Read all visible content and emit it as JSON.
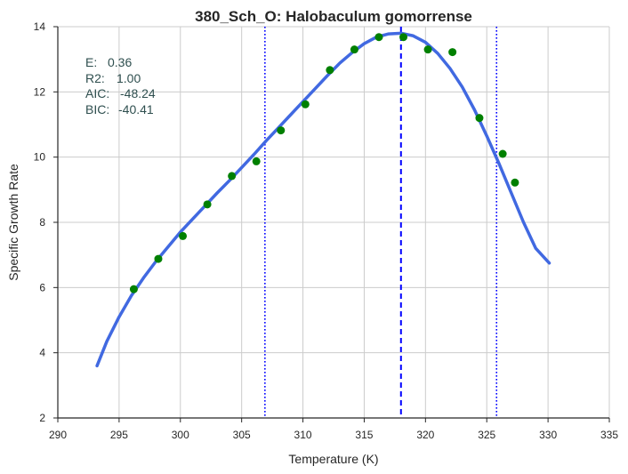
{
  "chart_data": {
    "type": "scatter",
    "title": "380_Sch_O: Halobaculum gomorrense",
    "xlabel": "Temperature (K)",
    "ylabel": "Specific Growth Rate",
    "xlim": [
      290,
      335
    ],
    "ylim": [
      2,
      14
    ],
    "xticks": [
      290,
      295,
      300,
      305,
      310,
      315,
      320,
      325,
      330,
      335
    ],
    "yticks": [
      2,
      4,
      6,
      8,
      10,
      12,
      14
    ],
    "grid": true,
    "points": {
      "color": "#008000",
      "x": [
        296.2,
        298.2,
        300.2,
        302.2,
        304.2,
        306.2,
        308.2,
        310.2,
        312.2,
        314.2,
        316.2,
        318.2,
        320.2,
        322.2,
        324.4,
        326.3,
        327.3
      ],
      "y": [
        5.95,
        6.88,
        7.58,
        8.55,
        9.42,
        9.87,
        10.82,
        11.62,
        12.67,
        13.3,
        13.68,
        13.68,
        13.3,
        13.22,
        11.2,
        10.1,
        9.22
      ]
    },
    "fit_curve": {
      "color": "#4169e1",
      "x": [
        293.2,
        294,
        295,
        296,
        297,
        298,
        299,
        300,
        301,
        302,
        303,
        304,
        305,
        306,
        307,
        308,
        309,
        310,
        311,
        312,
        313,
        314,
        315,
        316,
        317,
        318,
        319,
        320,
        321,
        322,
        323,
        324,
        325,
        326,
        327,
        328,
        329,
        330.1
      ],
      "y": [
        3.6,
        4.35,
        5.1,
        5.75,
        6.3,
        6.8,
        7.25,
        7.7,
        8.1,
        8.5,
        8.9,
        9.28,
        9.68,
        10.08,
        10.5,
        10.9,
        11.3,
        11.7,
        12.1,
        12.5,
        12.88,
        13.2,
        13.48,
        13.68,
        13.78,
        13.8,
        13.72,
        13.52,
        13.18,
        12.72,
        12.15,
        11.45,
        10.65,
        9.8,
        8.9,
        8.0,
        7.2,
        6.75
      ]
    },
    "vlines": [
      {
        "x": 318.0,
        "style": "dashed",
        "color": "#0000ff"
      },
      {
        "x": 306.9,
        "style": "dotted",
        "color": "#0000ff"
      },
      {
        "x": 325.8,
        "style": "dotted",
        "color": "#0000ff"
      }
    ],
    "stats": [
      {
        "label": "E:",
        "value": "0.36"
      },
      {
        "label": "R2:",
        "value": "1.00"
      },
      {
        "label": "AIC:",
        "value": "-48.24"
      },
      {
        "label": "BIC:",
        "value": "-40.41"
      }
    ]
  }
}
